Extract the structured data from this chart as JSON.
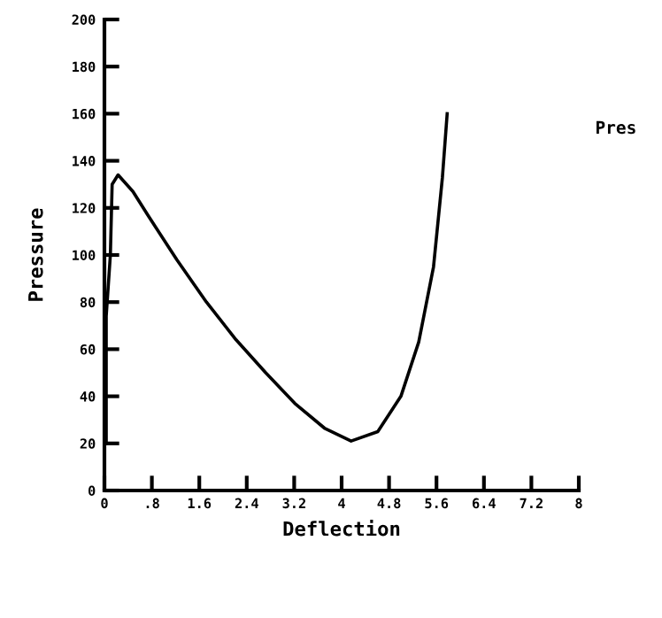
{
  "chart_data": {
    "type": "line",
    "xlabel": "Deflection",
    "ylabel": "Pressure",
    "xlim": [
      0,
      8
    ],
    "ylim": [
      0,
      200
    ],
    "xticks": [
      0,
      {
        "value": 0.8,
        "label": ".8"
      },
      1.6,
      2.4,
      3.2,
      4,
      4.8,
      5.6,
      6.4,
      7.2,
      8
    ],
    "yticks": [
      0,
      20,
      40,
      60,
      80,
      100,
      120,
      140,
      160,
      180,
      200
    ],
    "grid": false,
    "legend": "right",
    "marker": "none",
    "line_style": "solid",
    "series": [
      {
        "name": "Pres",
        "color": "#000000",
        "x": [
          0.03,
          0.03,
          0.1,
          0.13,
          0.23,
          0.48,
          0.73,
          1.22,
          1.72,
          2.22,
          2.72,
          3.21,
          3.71,
          4.16,
          4.61,
          5.0,
          5.3,
          5.55,
          5.7,
          5.78
        ],
        "values": [
          20,
          74,
          100,
          130,
          134,
          127,
          117,
          98,
          80,
          64,
          50,
          37,
          26.5,
          21,
          25,
          40,
          63,
          95,
          133,
          160
        ]
      }
    ]
  }
}
